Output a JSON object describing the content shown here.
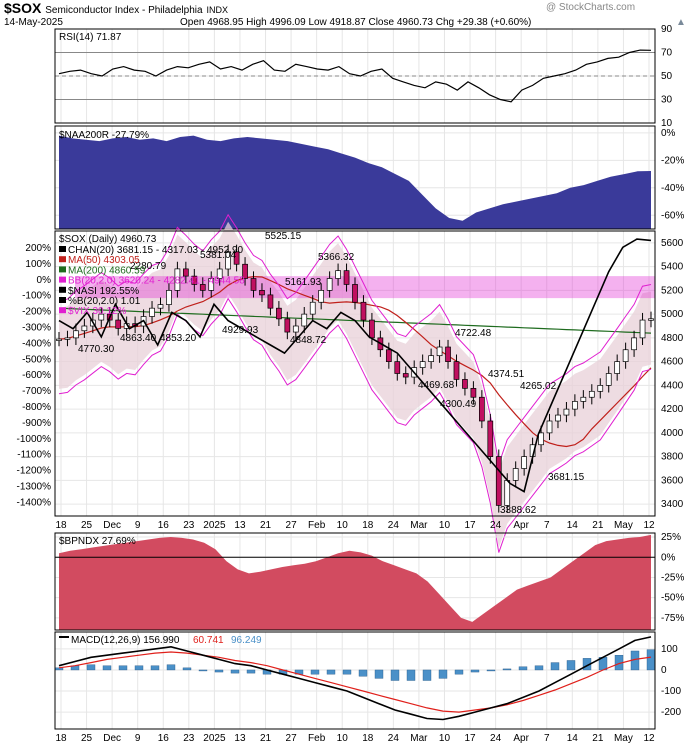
{
  "header": {
    "symbol": "$SOX",
    "name": "Semiconductor Index - Philadelphia",
    "exchange": "INDX",
    "date": "14-May-2025",
    "ohlc": "Open 4968.95  High 4996.09  Low 4918.87  Close 4960.73  Chg +29.38 (+0.60%)",
    "trend_icon": "triangle-up-icon",
    "watermark": "@ StockCharts.com"
  },
  "colors": {
    "frame": "#000000",
    "naa_fill": "#3a3a9a",
    "bpndx_fill": "#d24b60",
    "macd_hist": "#4a90c8",
    "macd_line": "#000000",
    "signal_line": "#e0201b",
    "ma50": "#c0201b",
    "ma200": "#1e6b1e",
    "bb": "#e020d0",
    "chan_fill": "#e8d0d8",
    "vix": "#e020d0",
    "candle_up": "#ffffff",
    "candle_down": "#c01060"
  },
  "x_axis": {
    "labels_top": [
      "18",
      "25",
      "Dec",
      "9",
      "16",
      "23",
      "2025",
      "13",
      "21",
      "27",
      "Feb",
      "10",
      "18",
      "24",
      "Mar",
      "10",
      "17",
      "24",
      "Apr",
      "7",
      "14",
      "21",
      "May",
      "12"
    ],
    "labels_bottom": [
      "18",
      "25",
      "Dec",
      "9",
      "16",
      "23",
      "2025",
      "13",
      "21",
      "27",
      "Feb",
      "10",
      "18",
      "24",
      "Mar",
      "10",
      "17",
      "24",
      "Apr",
      "7",
      "14",
      "21",
      "May",
      "12"
    ]
  },
  "chart_data": [
    {
      "type": "line",
      "title": "RSI(14) 71.87",
      "series": [
        {
          "name": "RSI(14)",
          "values": [
            52,
            54,
            55,
            52,
            50,
            56,
            58,
            55,
            54,
            50,
            55,
            58,
            57,
            60,
            62,
            56,
            58,
            55,
            60,
            63,
            55,
            54,
            60,
            58,
            56,
            55,
            58,
            52,
            50,
            54,
            56,
            48,
            45,
            42,
            40,
            45,
            43,
            38,
            45,
            40,
            34,
            30,
            28,
            38,
            42,
            48,
            50,
            52,
            55,
            60,
            62,
            65,
            66,
            70,
            72,
            71.87
          ]
        }
      ],
      "ylim": [
        10,
        90
      ],
      "yticks": [
        90,
        70,
        50,
        30,
        10
      ],
      "reference_lines": [
        70,
        50,
        30
      ]
    },
    {
      "type": "area",
      "title": "$NAA200R -27.79%",
      "series": [
        {
          "name": "$NAA200R",
          "values": [
            -2,
            -4,
            -5,
            -6,
            -4,
            -3,
            -5,
            -4,
            -6,
            -3,
            -2,
            -5,
            -6,
            -4,
            -3,
            -4,
            -5,
            -6,
            -8,
            -10,
            -12,
            -15,
            -18,
            -22,
            -25,
            -30,
            -35,
            -45,
            -55,
            -62,
            -64,
            -58,
            -55,
            -52,
            -50,
            -48,
            -46,
            -44,
            -40,
            -38,
            -35,
            -32,
            -30,
            -28,
            -27.79
          ]
        }
      ],
      "ylim": [
        -70,
        5
      ],
      "yticks": [
        "0%",
        "-20%",
        "-40%",
        "-60%"
      ],
      "ytick_values": [
        0,
        -20,
        -40,
        -60
      ]
    },
    {
      "type": "line",
      "title": "$SOX (Daily) 4960.73",
      "legend": [
        "CHAN(20) 3681.15 - 4317.03 - 4952.90",
        "MA(50) 4303.05",
        "MA(200) 4860.59",
        "BB(20,2.0) 3620.24 - 4282.41 - 4944.58",
        "$NASI 192.55%",
        "%B(20,2.0) 1.01",
        "$VIX 30.12%"
      ],
      "close_values": [
        4790,
        4800,
        4860,
        4900,
        4950,
        5000,
        4950,
        4880,
        4920,
        4900,
        4980,
        5050,
        5080,
        5200,
        5381,
        5320,
        5250,
        5200,
        5300,
        5380,
        5525,
        5420,
        5300,
        5200,
        5162,
        5050,
        4960,
        4849,
        4900,
        5000,
        5100,
        5200,
        5300,
        5366,
        5250,
        5100,
        4950,
        4800,
        4700,
        4600,
        4500,
        4470,
        4550,
        4600,
        4650,
        4723,
        4600,
        4450,
        4375,
        4300,
        4100,
        3800,
        3389,
        3600,
        3700,
        3800,
        3900,
        4000,
        4100,
        4150,
        4200,
        4265,
        4300,
        4350,
        4400,
        4500,
        4600,
        4700,
        4800,
        4950,
        4960.73
      ],
      "nasi_values": [
        -300,
        -350,
        -250,
        -400,
        -200,
        -350,
        -300,
        -450,
        -250,
        -300,
        -400,
        -200,
        -300,
        -350,
        -400,
        -450,
        -500,
        -400,
        -300,
        -350,
        -250,
        -300,
        -400,
        -450,
        -500,
        -600,
        -700,
        -800,
        -900,
        -1000,
        -1100,
        -1200,
        -1300,
        -1350,
        -1000,
        -800,
        -600,
        -400,
        -200,
        0,
        150,
        200,
        192.55
      ],
      "annotations": [
        "5525.15",
        "5381.04",
        "5366.32",
        "5161.93",
        "4929.93",
        "4848.72",
        "4863.40",
        "4853.20",
        "4770.30",
        "4722.48",
        "4469.68",
        "4374.51",
        "4300.49",
        "4265.02",
        "3681.15",
        "3388.62",
        "2280.79"
      ],
      "ylim": [
        3300,
        5700
      ],
      "yticks_right": [
        5600,
        5400,
        5200,
        5000,
        4800,
        4600,
        4400,
        4200,
        4000,
        3800,
        3600,
        3400
      ],
      "yticks_left": [
        "200%",
        "100%",
        "0%",
        "-100%",
        "-200%",
        "-300%",
        "-400%",
        "-500%",
        "-600%",
        "-700%",
        "-800%",
        "-900%",
        "-1000%",
        "-1100%",
        "-1200%",
        "-1300%",
        "-1400%"
      ]
    },
    {
      "type": "area",
      "title": "$BPNDX 27.69%",
      "series": [
        {
          "name": "$BPNDX",
          "values": [
            5,
            8,
            10,
            12,
            14,
            16,
            18,
            20,
            22,
            24,
            25,
            24,
            22,
            18,
            10,
            -5,
            -15,
            -20,
            -18,
            -15,
            -12,
            -10,
            -8,
            -5,
            0,
            5,
            8,
            6,
            2,
            -5,
            -10,
            -15,
            -20,
            -30,
            -45,
            -60,
            -75,
            -80,
            -70,
            -60,
            -50,
            -40,
            -35,
            -30,
            -25,
            -15,
            -5,
            5,
            15,
            20,
            22,
            24,
            25,
            27.69
          ]
        }
      ],
      "ylim": [
        -90,
        30
      ],
      "yticks": [
        "25%",
        "0%",
        "-25%",
        "-50%",
        "-75%"
      ],
      "ytick_values": [
        25,
        0,
        -25,
        -50,
        -75
      ]
    },
    {
      "type": "line",
      "title": "MACD(12,26,9)",
      "legend": [
        "MACD(12,26,9) 156.990",
        "60.741",
        "96.249"
      ],
      "series": [
        {
          "name": "MACD(12,26,9)",
          "values": [
            20,
            40,
            60,
            70,
            80,
            90,
            100,
            110,
            90,
            70,
            50,
            30,
            20,
            0,
            -20,
            -40,
            -60,
            -80,
            -100,
            -130,
            -160,
            -190,
            -210,
            -230,
            -235,
            -220,
            -200,
            -180,
            -160,
            -130,
            -100,
            -60,
            -20,
            20,
            60,
            100,
            140,
            156.99
          ]
        },
        {
          "name": "60.741",
          "values": [
            10,
            20,
            35,
            50,
            60,
            70,
            80,
            85,
            80,
            70,
            60,
            45,
            35,
            20,
            0,
            -20,
            -40,
            -60,
            -80,
            -100,
            -120,
            -140,
            -160,
            -180,
            -195,
            -200,
            -190,
            -180,
            -165,
            -145,
            -120,
            -95,
            -65,
            -35,
            0,
            30,
            50,
            60.741
          ]
        }
      ],
      "ylim": [
        -280,
        180
      ],
      "yticks": [
        100,
        0,
        -100,
        -200
      ]
    }
  ]
}
